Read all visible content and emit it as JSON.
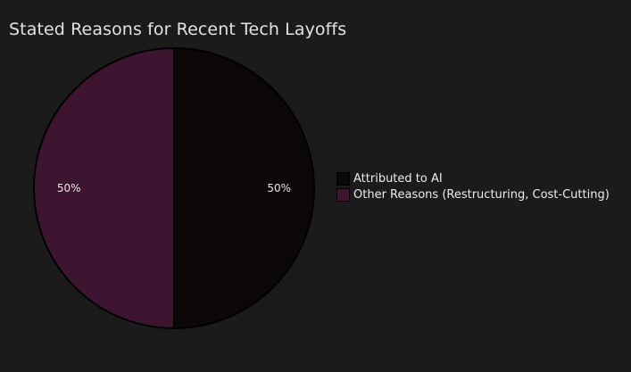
{
  "chart_data": {
    "type": "pie",
    "title": "Stated Reasons for Recent Tech Layoffs",
    "labels": [
      "Attributed to AI",
      "Other Reasons (Restructuring, Cost-Cutting)"
    ],
    "values": [
      50,
      50
    ],
    "value_labels": [
      "50%",
      "50%"
    ],
    "colors": [
      "#0c0808",
      "#3e1530"
    ],
    "legend_position": "right"
  }
}
